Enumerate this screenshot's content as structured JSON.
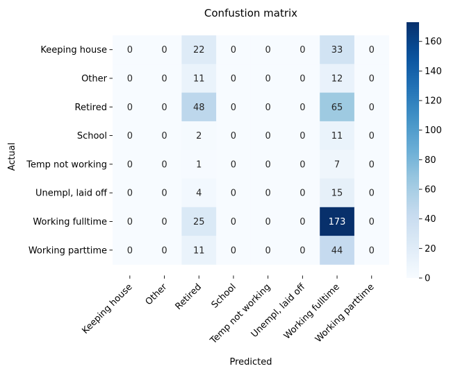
{
  "chart_data": {
    "type": "heatmap",
    "title": "Confustion matrix",
    "xlabel": "Predicted",
    "ylabel": "Actual",
    "x_categories": [
      "Keeping house",
      "Other",
      "Retired",
      "School",
      "Temp not working",
      "Unempl, laid off",
      "Working fulltime",
      "Working parttime"
    ],
    "y_categories": [
      "Keeping house",
      "Other",
      "Retired",
      "School",
      "Temp not working",
      "Unempl, laid off",
      "Working fulltime",
      "Working parttime"
    ],
    "values": [
      [
        0,
        0,
        22,
        0,
        0,
        0,
        33,
        0
      ],
      [
        0,
        0,
        11,
        0,
        0,
        0,
        12,
        0
      ],
      [
        0,
        0,
        48,
        0,
        0,
        0,
        65,
        0
      ],
      [
        0,
        0,
        2,
        0,
        0,
        0,
        11,
        0
      ],
      [
        0,
        0,
        1,
        0,
        0,
        0,
        7,
        0
      ],
      [
        0,
        0,
        4,
        0,
        0,
        0,
        15,
        0
      ],
      [
        0,
        0,
        25,
        0,
        0,
        0,
        173,
        0
      ],
      [
        0,
        0,
        11,
        0,
        0,
        0,
        44,
        0
      ]
    ],
    "vmin": 0,
    "vmax": 173,
    "colormap": "Blues",
    "colorbar_ticks": [
      0,
      20,
      40,
      60,
      80,
      100,
      120,
      140,
      160
    ]
  }
}
